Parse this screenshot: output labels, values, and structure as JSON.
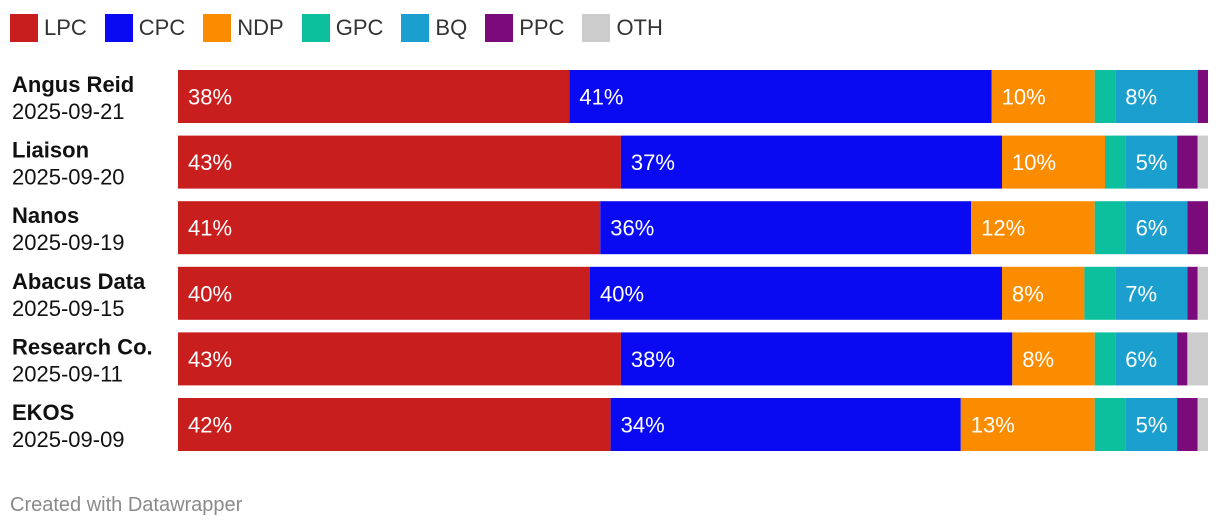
{
  "legend": [
    {
      "key": "LPC",
      "label": "LPC",
      "color": "#c91e1e"
    },
    {
      "key": "CPC",
      "label": "CPC",
      "color": "#0a0af2"
    },
    {
      "key": "NDP",
      "label": "NDP",
      "color": "#fb8c00"
    },
    {
      "key": "GPC",
      "label": "GPC",
      "color": "#0cbf9d"
    },
    {
      "key": "BQ",
      "label": "BQ",
      "color": "#1a9fce"
    },
    {
      "key": "PPC",
      "label": "PPC",
      "color": "#7b0a7b"
    },
    {
      "key": "OTH",
      "label": "OTH",
      "color": "#cccccc"
    }
  ],
  "chart_data": {
    "type": "bar",
    "orientation": "horizontal-stacked-100",
    "title": "",
    "xlabel": "",
    "ylabel": "",
    "xlim": [
      0,
      100
    ],
    "categories": [
      "Angus Reid",
      "Liaison",
      "Nanos",
      "Abacus Data",
      "Research Co.",
      "EKOS"
    ],
    "dates": [
      "2025-09-21",
      "2025-09-20",
      "2025-09-19",
      "2025-09-15",
      "2025-09-11",
      "2025-09-09"
    ],
    "series": [
      {
        "name": "LPC",
        "values": [
          38,
          43,
          41,
          40,
          43,
          42
        ],
        "labels": [
          "38%",
          "43%",
          "41%",
          "40%",
          "43%",
          "42%"
        ]
      },
      {
        "name": "CPC",
        "values": [
          41,
          37,
          36,
          40,
          38,
          34
        ],
        "labels": [
          "41%",
          "37%",
          "36%",
          "40%",
          "38%",
          "34%"
        ]
      },
      {
        "name": "NDP",
        "values": [
          10,
          10,
          12,
          8,
          8,
          13
        ],
        "labels": [
          "10%",
          "10%",
          "12%",
          "8%",
          "8%",
          "13%"
        ]
      },
      {
        "name": "GPC",
        "values": [
          2,
          2,
          3,
          3,
          2,
          3
        ],
        "labels": [
          "",
          "",
          "",
          "",
          "",
          ""
        ]
      },
      {
        "name": "BQ",
        "values": [
          8,
          5,
          6,
          7,
          6,
          5
        ],
        "labels": [
          "8%",
          "5%",
          "6%",
          "7%",
          "6%",
          "5%"
        ]
      },
      {
        "name": "PPC",
        "values": [
          1,
          2,
          2,
          1,
          1,
          2
        ],
        "labels": [
          "",
          "",
          "",
          "",
          "",
          ""
        ]
      },
      {
        "name": "OTH",
        "values": [
          0,
          1,
          0,
          1,
          2,
          1
        ],
        "labels": [
          "",
          "",
          "",
          "",
          "",
          ""
        ]
      }
    ]
  },
  "footer": {
    "credit": "Created with Datawrapper"
  }
}
